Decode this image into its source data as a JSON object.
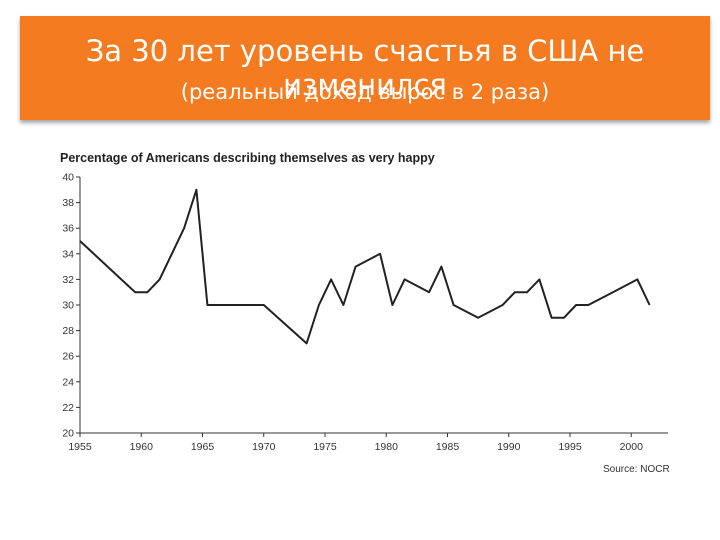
{
  "header": {
    "title": "За 30 лет уровень счастья в США не изменился",
    "subtitle": "(реальный доход вырос в 2 раза)"
  },
  "colors": {
    "banner": "#f47b20",
    "line": "#222222",
    "axis": "#333333"
  },
  "chart_data": {
    "type": "line",
    "title": "Percentage of Americans describing themselves as very happy",
    "source": "Source: NOCR",
    "xlabel": "",
    "ylabel": "",
    "xlim": [
      1955,
      2003
    ],
    "ylim": [
      20,
      40
    ],
    "x_ticks": [
      "1955",
      "1960",
      "1965",
      "1970",
      "1975",
      "1980",
      "1985",
      "1990",
      "1995",
      "2000"
    ],
    "y_ticks": [
      "20",
      "22",
      "24",
      "26",
      "28",
      "30",
      "32",
      "34",
      "36",
      "38",
      "40"
    ],
    "grid": false,
    "series": [
      {
        "x": [
          1955,
          1959.5,
          1960.5,
          1961.5,
          1963.5,
          1964.5,
          1965.4,
          1970,
          1973.5,
          1974.5,
          1975.5,
          1976.5,
          1977.5,
          1979.5,
          1980.5,
          1981.5,
          1983.5,
          1984.5,
          1985.5,
          1987.5,
          1988.5,
          1989.5,
          1990.5,
          1991.5,
          1992.5,
          1993.5,
          1994.5,
          1995.5,
          1996.5,
          1997.5,
          1998.5,
          2000.5,
          2001.5
        ],
        "values": [
          35,
          31,
          31,
          32,
          36,
          39,
          30,
          30,
          27,
          30,
          32,
          30,
          33,
          34,
          30,
          32,
          31,
          33,
          30,
          29,
          29.5,
          30,
          31,
          31,
          32,
          29,
          29,
          30,
          30,
          30.5,
          31,
          32,
          30
        ]
      }
    ]
  }
}
